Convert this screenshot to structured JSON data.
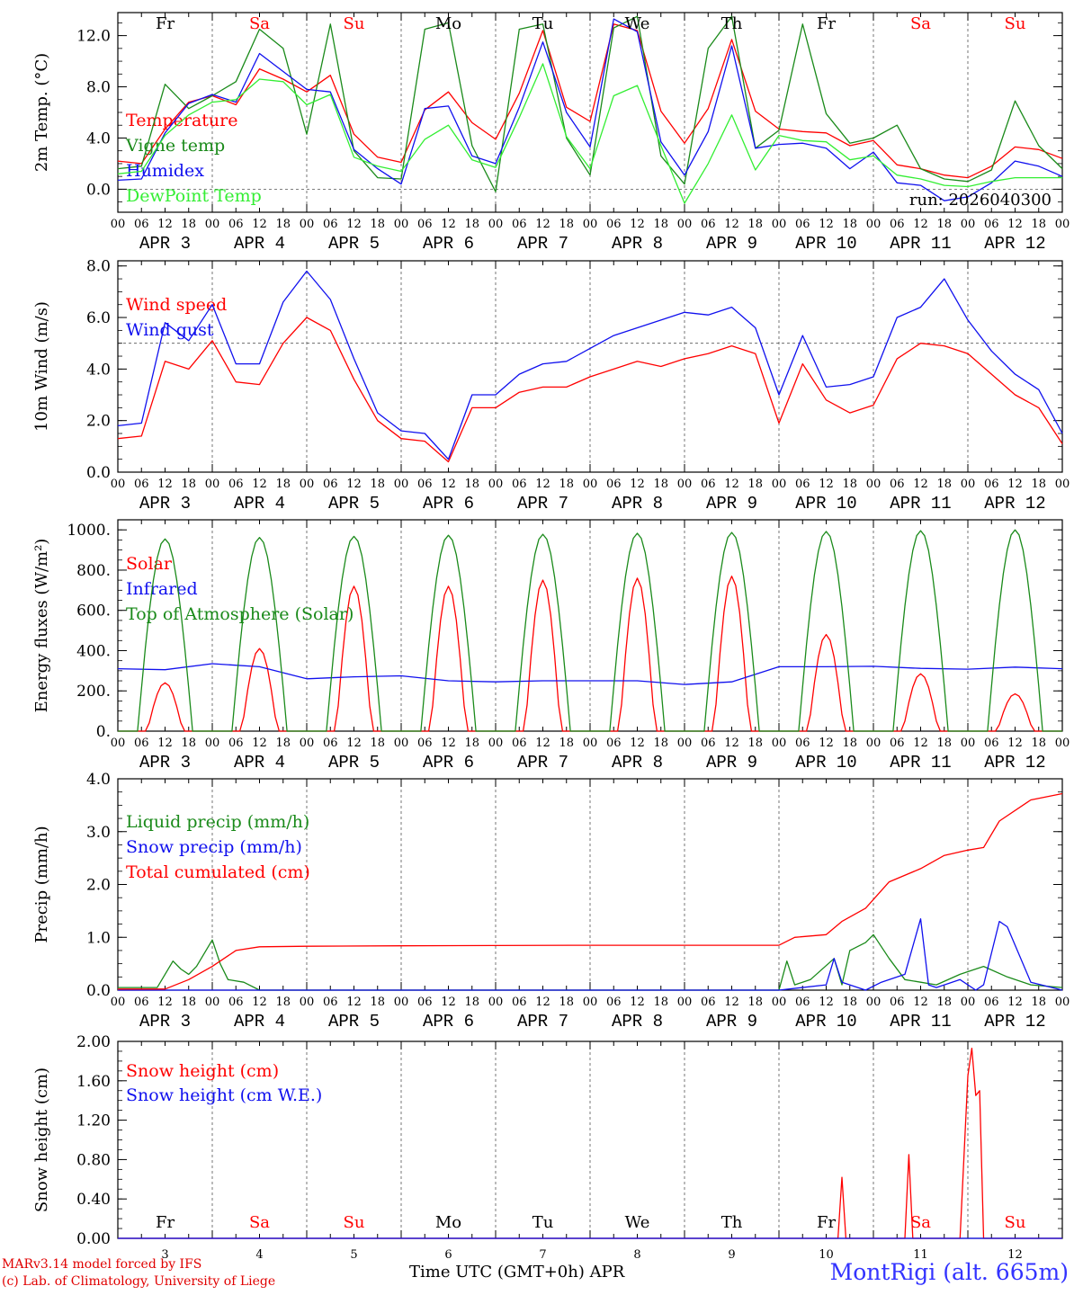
{
  "run": "run: 2026040300",
  "days": {
    "abbr": [
      "Fr",
      "Sa",
      "Su",
      "Mo",
      "Tu",
      "We",
      "Th",
      "Fr",
      "Sa",
      "Su"
    ],
    "weekend": [
      false,
      true,
      true,
      false,
      false,
      false,
      false,
      false,
      true,
      true
    ],
    "labels": [
      "APR  3",
      "APR  4",
      "APR  5",
      "APR  6",
      "APR  7",
      "APR  8",
      "APR  9",
      "APR 10",
      "APR 11",
      "APR 12"
    ],
    "numbers": [
      "3",
      "4",
      "5",
      "6",
      "7",
      "8",
      "9",
      "10",
      "11",
      "12"
    ],
    "hour_ticks": [
      "00",
      "06",
      "12",
      "18"
    ],
    "end_tick": "00"
  },
  "colors": {
    "red": "#ff0000",
    "green": "#1a8a1a",
    "blue": "#1010ee",
    "light_green": "#33ee33",
    "weekend": "#ff0000"
  },
  "chart_data": [
    {
      "type": "line",
      "ylabel": "2m Temp. (°C)",
      "ylim": [
        -1.8,
        13.8
      ],
      "yticks": [
        0.0,
        4.0,
        8.0,
        12.0
      ],
      "ytick_labels": [
        "0.0",
        "4.0",
        "8.0",
        "12.0"
      ],
      "reference_line": 0,
      "x_unit": "hours since Apr 3 00 UTC",
      "x": [
        0,
        6,
        12,
        18,
        24,
        30,
        36,
        42,
        48,
        54,
        60,
        66,
        72,
        78,
        84,
        90,
        96,
        102,
        108,
        114,
        120,
        126,
        132,
        138,
        144,
        150,
        156,
        162,
        168,
        174,
        180,
        186,
        192,
        198,
        204,
        210,
        216,
        222,
        228,
        234,
        240
      ],
      "series": [
        {
          "name": "Temperature",
          "color": "#ff0000",
          "values": [
            2.2,
            2.0,
            4.7,
            6.8,
            7.3,
            6.6,
            9.4,
            8.6,
            7.6,
            8.9,
            4.3,
            2.5,
            2.1,
            6.2,
            7.6,
            5.2,
            3.9,
            7.5,
            12.4,
            6.4,
            5.3,
            12.9,
            12.4,
            6.1,
            3.6,
            6.3,
            11.7,
            6.1,
            4.7,
            4.5,
            4.4,
            3.4,
            3.8,
            1.9,
            1.6,
            1.1,
            0.9,
            1.8,
            3.3,
            3.1,
            2.4
          ]
        },
        {
          "name": "Vigne temp",
          "color": "#1a8a1a",
          "values": [
            1.6,
            1.8,
            8.2,
            6.3,
            7.3,
            8.4,
            12.5,
            11.0,
            4.3,
            12.9,
            3.0,
            0.9,
            0.8,
            12.5,
            13.0,
            3.4,
            -0.2,
            12.5,
            12.9,
            4.0,
            1.1,
            12.6,
            13.5,
            2.6,
            0.4,
            11.0,
            13.5,
            3.2,
            4.6,
            12.9,
            5.9,
            3.6,
            4.0,
            5.0,
            1.6,
            0.8,
            0.6,
            1.5,
            6.9,
            3.4,
            1.6
          ]
        },
        {
          "name": "Humidex",
          "color": "#1010ee",
          "values": [
            0.7,
            0.8,
            4.4,
            6.7,
            7.4,
            6.8,
            10.6,
            9.2,
            7.8,
            7.6,
            3.1,
            1.6,
            0.4,
            6.3,
            6.5,
            2.6,
            2.0,
            6.4,
            11.5,
            6.0,
            3.3,
            13.3,
            12.3,
            3.7,
            1.1,
            4.5,
            11.2,
            3.2,
            3.5,
            3.6,
            3.2,
            1.6,
            2.9,
            0.5,
            0.3,
            -0.9,
            -0.6,
            0.5,
            2.2,
            1.8,
            1.0
          ]
        },
        {
          "name": "DewPoint Temp",
          "color": "#33ee33",
          "values": [
            1.2,
            1.4,
            4.2,
            5.8,
            6.8,
            7.0,
            8.6,
            8.4,
            6.6,
            7.4,
            2.5,
            1.8,
            1.4,
            3.9,
            5.0,
            2.3,
            1.7,
            5.6,
            9.8,
            4.1,
            1.6,
            7.3,
            8.1,
            3.4,
            -1.1,
            2.0,
            5.8,
            1.5,
            4.2,
            3.8,
            3.7,
            2.3,
            2.6,
            1.1,
            0.8,
            0.3,
            0.2,
            0.6,
            0.9,
            0.9,
            0.9
          ]
        }
      ]
    },
    {
      "type": "line",
      "ylabel": "10m Wind (m/s)",
      "ylim": [
        0,
        8.2
      ],
      "yticks": [
        0.0,
        2.0,
        4.0,
        6.0,
        8.0
      ],
      "ytick_labels": [
        "0.0",
        "2.0",
        "4.0",
        "6.0",
        "8.0"
      ],
      "reference_line": 5,
      "x_unit": "hours since Apr 3 00 UTC",
      "x": [
        0,
        6,
        12,
        18,
        24,
        30,
        36,
        42,
        48,
        54,
        60,
        66,
        72,
        78,
        84,
        90,
        96,
        102,
        108,
        114,
        120,
        126,
        132,
        138,
        144,
        150,
        156,
        162,
        168,
        174,
        180,
        186,
        192,
        198,
        204,
        210,
        216,
        222,
        228,
        234,
        240
      ],
      "series": [
        {
          "name": "Wind speed",
          "color": "#ff0000",
          "values": [
            1.3,
            1.4,
            4.3,
            4.0,
            5.1,
            3.5,
            3.4,
            5.0,
            6.0,
            5.5,
            3.6,
            2.0,
            1.3,
            1.2,
            0.4,
            2.5,
            2.5,
            3.1,
            3.3,
            3.3,
            3.7,
            4.0,
            4.3,
            4.1,
            4.4,
            4.6,
            4.9,
            4.6,
            1.9,
            4.2,
            2.8,
            2.3,
            2.6,
            4.4,
            5.0,
            4.9,
            4.6,
            3.8,
            3.0,
            2.5,
            1.1
          ]
        },
        {
          "name": "Wind gust",
          "color": "#1010ee",
          "values": [
            1.8,
            1.9,
            5.8,
            5.1,
            6.5,
            4.2,
            4.2,
            6.6,
            7.8,
            6.7,
            4.4,
            2.3,
            1.6,
            1.5,
            0.5,
            3.0,
            3.0,
            3.8,
            4.2,
            4.3,
            4.8,
            5.3,
            5.6,
            5.9,
            6.2,
            6.1,
            6.4,
            5.6,
            3.0,
            5.3,
            3.3,
            3.4,
            3.7,
            6.0,
            6.4,
            7.5,
            5.9,
            4.7,
            3.8,
            3.2,
            1.5
          ]
        }
      ]
    },
    {
      "type": "line",
      "ylabel": "Energy fluxes (W/m²)",
      "ylim": [
        0,
        1050
      ],
      "yticks": [
        0,
        200,
        400,
        600,
        800,
        1000
      ],
      "ytick_labels": [
        "0.",
        "200.",
        "400.",
        "600.",
        "800.",
        "1000."
      ],
      "x_unit": "hours since Apr 3 00 UTC",
      "series": [
        {
          "name": "Solar",
          "color": "#ff0000",
          "peak_hour": 12,
          "daily_peaks": [
            240,
            410,
            720,
            720,
            750,
            760,
            770,
            480,
            285,
            185
          ]
        },
        {
          "name": "Infrared",
          "color": "#1010ee",
          "x": [
            0,
            12,
            24,
            36,
            48,
            60,
            72,
            84,
            96,
            108,
            120,
            132,
            144,
            156,
            168,
            180,
            192,
            204,
            216,
            228,
            240
          ],
          "values": [
            310,
            305,
            335,
            320,
            260,
            270,
            275,
            250,
            245,
            250,
            250,
            250,
            232,
            245,
            320,
            320,
            322,
            312,
            308,
            318,
            310
          ]
        },
        {
          "name": "Top of Atmosphere (Solar)",
          "color": "#1a8a1a",
          "peak_hour": 12,
          "daily_peaks": [
            955,
            962,
            968,
            973,
            978,
            983,
            987,
            992,
            996,
            1000
          ]
        }
      ]
    },
    {
      "type": "line",
      "ylabel": "Precip (mm/h)",
      "ylim": [
        0,
        4.0
      ],
      "yticks": [
        0.0,
        1.0,
        2.0,
        3.0,
        4.0
      ],
      "ytick_labels": [
        "0.0",
        "1.0",
        "2.0",
        "3.0",
        "4.0"
      ],
      "x_unit": "hours since Apr 3 00 UTC",
      "series": [
        {
          "name": "Liquid precip (mm/h)",
          "color": "#1a8a1a",
          "x": [
            0,
            10,
            14,
            16,
            18,
            20,
            24,
            26,
            28,
            32,
            36,
            40,
            44,
            48,
            168,
            170,
            172,
            176,
            182,
            184,
            186,
            190,
            192,
            196,
            200,
            204,
            208,
            214,
            220,
            226,
            232,
            240
          ],
          "values": [
            0.05,
            0.05,
            0.55,
            0.4,
            0.3,
            0.45,
            0.95,
            0.5,
            0.2,
            0.15,
            0.0,
            0.0,
            0.0,
            0.0,
            0.0,
            0.55,
            0.1,
            0.2,
            0.6,
            0.1,
            0.75,
            0.9,
            1.05,
            0.6,
            0.2,
            0.15,
            0.1,
            0.3,
            0.45,
            0.25,
            0.1,
            0.05
          ]
        },
        {
          "name": "Snow precip (mm/h)",
          "color": "#1010ee",
          "x": [
            0,
            48,
            168,
            180,
            182,
            184,
            190,
            194,
            200,
            204,
            206,
            208,
            214,
            218,
            220,
            224,
            226,
            232,
            240
          ],
          "values": [
            0.0,
            0.0,
            0.0,
            0.1,
            0.6,
            0.15,
            0.0,
            0.15,
            0.3,
            1.35,
            0.1,
            0.05,
            0.2,
            0.0,
            0.1,
            1.3,
            1.2,
            0.15,
            0.0
          ]
        },
        {
          "name": "Total cumulated (cm)",
          "color": "#ff0000",
          "x": [
            0,
            12,
            18,
            24,
            30,
            36,
            48,
            72,
            120,
            168,
            172,
            180,
            184,
            190,
            196,
            204,
            210,
            216,
            220,
            224,
            232,
            240
          ],
          "values": [
            0.02,
            0.02,
            0.2,
            0.45,
            0.75,
            0.82,
            0.83,
            0.84,
            0.85,
            0.85,
            1.0,
            1.05,
            1.3,
            1.55,
            2.05,
            2.3,
            2.55,
            2.65,
            2.7,
            3.2,
            3.6,
            3.72
          ]
        }
      ]
    },
    {
      "type": "line",
      "ylabel": "Snow height (cm)",
      "ylim": [
        0,
        2.0
      ],
      "yticks": [
        0.0,
        0.4,
        0.8,
        1.2,
        1.6,
        2.0
      ],
      "ytick_labels": [
        "0.00",
        "0.40",
        "0.80",
        "1.20",
        "1.60",
        "2.00"
      ],
      "x_unit": "hours since Apr 3 00 UTC",
      "series": [
        {
          "name": "Snow height (cm)",
          "color": "#ff0000",
          "x": [
            0,
            183,
            184,
            185,
            200,
            201,
            202,
            214,
            216,
            217,
            218,
            219,
            220,
            240
          ],
          "values": [
            0,
            0,
            0.62,
            0,
            0,
            0.85,
            0,
            0,
            1.65,
            1.93,
            1.45,
            1.5,
            0,
            0
          ]
        },
        {
          "name": "Snow height (cm W.E.)",
          "color": "#1010ee",
          "x": [
            0,
            240
          ],
          "values": [
            0,
            0
          ]
        }
      ]
    }
  ],
  "xaxis_title": "Time UTC (GMT+0h)",
  "month": "APR",
  "credit": [
    "MARv3.14 model forced by IFS",
    "(c) Lab. of Climatology, University of Liege"
  ],
  "station": "MontRigi (alt. 665m)"
}
